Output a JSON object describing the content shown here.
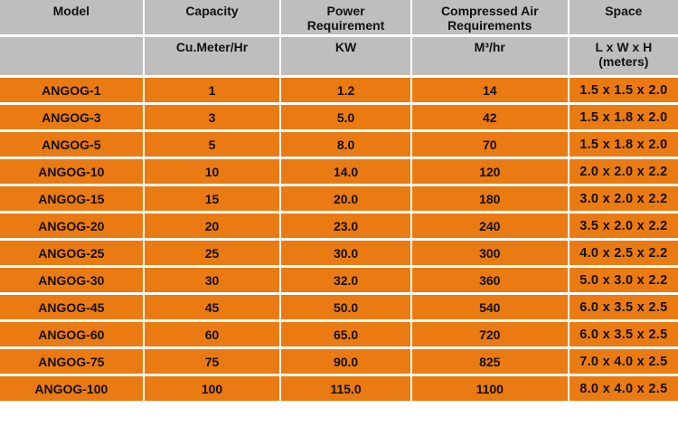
{
  "table": {
    "headers": [
      {
        "label": "Model",
        "unit": ""
      },
      {
        "label": "Capacity",
        "unit": "Cu.Meter/Hr"
      },
      {
        "label": "Power\nRequirement",
        "unit": "KW"
      },
      {
        "label": "Compressed Air\nRequirements",
        "unit": "M³/hr"
      },
      {
        "label": "Space",
        "unit": "L x W x H\n(meters)"
      }
    ],
    "rows": [
      [
        "ANGOG-1",
        "1",
        "1.2",
        "14",
        "1.5 x 1.5 x 2.0"
      ],
      [
        "ANGOG-3",
        "3",
        "5.0",
        "42",
        "1.5 x 1.8 x 2.0"
      ],
      [
        "ANGOG-5",
        "5",
        "8.0",
        "70",
        "1.5 x 1.8 x 2.0"
      ],
      [
        "ANGOG-10",
        "10",
        "14.0",
        "120",
        "2.0 x 2.0 x 2.2"
      ],
      [
        "ANGOG-15",
        "15",
        "20.0",
        "180",
        "3.0 x 2.0 x 2.2"
      ],
      [
        "ANGOG-20",
        "20",
        "23.0",
        "240",
        "3.5 x 2.0 x 2.2"
      ],
      [
        "ANGOG-25",
        "25",
        "30.0",
        "300",
        "4.0 x 2.5 x 2.2"
      ],
      [
        "ANGOG-30",
        "30",
        "32.0",
        "360",
        "5.0 x 3.0 x 2.2"
      ],
      [
        "ANGOG-45",
        "45",
        "50.0",
        "540",
        "6.0 x 3.5 x 2.5"
      ],
      [
        "ANGOG-60",
        "60",
        "65.0",
        "720",
        "6.0 x 3.5 x 2.5"
      ],
      [
        "ANGOG-75",
        "75",
        "90.0",
        "825",
        "7.0 x 4.0 x 2.5"
      ],
      [
        "ANGOG-100",
        "100",
        "115.0",
        "1100",
        "8.0 x 4.0 x 2.5"
      ]
    ]
  },
  "colors": {
    "header_bg": "#bebebe",
    "row_bg": "#ea7a12",
    "separator": "#ffffff",
    "text": "#111111"
  }
}
